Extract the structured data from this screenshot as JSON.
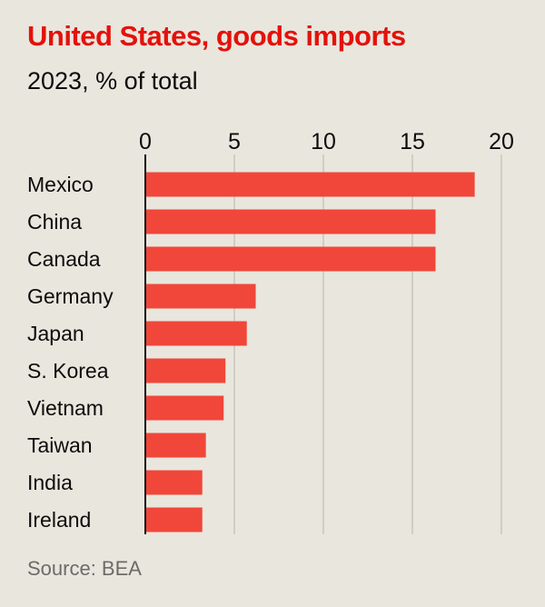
{
  "chart_data": {
    "type": "bar",
    "orientation": "horizontal",
    "title": "United States, goods imports",
    "subtitle": "2023, % of total",
    "source": "Source: BEA",
    "categories": [
      "Mexico",
      "China",
      "Canada",
      "Germany",
      "Japan",
      "S. Korea",
      "Vietnam",
      "Taiwan",
      "India",
      "Ireland"
    ],
    "values": [
      18.5,
      16.3,
      16.3,
      6.2,
      5.7,
      4.5,
      4.4,
      3.4,
      3.2,
      3.2
    ],
    "xlim": [
      0,
      20
    ],
    "xticks": [
      0,
      5,
      10,
      15,
      20
    ],
    "bar_color": "#f0473a",
    "title_color": "#e3120b",
    "grid": true
  }
}
